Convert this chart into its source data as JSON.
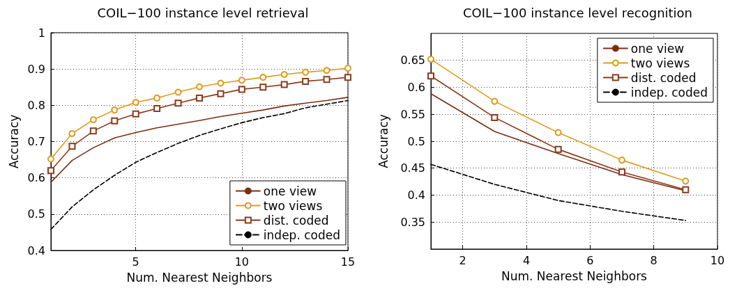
{
  "chart_data": [
    {
      "type": "line",
      "title": "COIL−100 instance level retrieval",
      "xlabel": "Num. Nearest Neighbors",
      "ylabel": "Accuracy",
      "x": [
        1,
        2,
        3,
        4,
        5,
        6,
        7,
        8,
        9,
        10,
        11,
        12,
        13,
        14,
        15
      ],
      "xlim": [
        1,
        15
      ],
      "xticks": [
        5,
        10,
        15
      ],
      "ylim": [
        0.4,
        1
      ],
      "yticks": [
        0.4,
        0.5,
        0.6,
        0.7,
        0.8,
        0.9,
        1
      ],
      "grid": true,
      "legend": "bottom right",
      "series": [
        {
          "name": "one view",
          "color": "#7a2e10",
          "marker": "none",
          "line_style": "solid",
          "values": [
            0.588,
            0.648,
            0.683,
            0.71,
            0.725,
            0.738,
            0.748,
            0.758,
            0.769,
            0.778,
            0.787,
            0.798,
            0.806,
            0.813,
            0.822
          ]
        },
        {
          "name": "two views",
          "color": "#e09a1a",
          "marker": "circle",
          "line_style": "solid",
          "values": [
            0.652,
            0.722,
            0.76,
            0.787,
            0.808,
            0.82,
            0.836,
            0.851,
            0.861,
            0.869,
            0.877,
            0.885,
            0.891,
            0.896,
            0.902
          ]
        },
        {
          "name": "dist. coded",
          "color": "#8b3a1a",
          "marker": "square",
          "line_style": "solid",
          "values": [
            0.62,
            0.687,
            0.729,
            0.757,
            0.776,
            0.791,
            0.806,
            0.82,
            0.832,
            0.844,
            0.85,
            0.857,
            0.866,
            0.871,
            0.877
          ]
        },
        {
          "name": "indep. coded",
          "color": "#000000",
          "marker": "none",
          "line_style": "dashed",
          "values": [
            0.458,
            0.52,
            0.567,
            0.607,
            0.643,
            0.67,
            0.695,
            0.717,
            0.735,
            0.752,
            0.766,
            0.777,
            0.793,
            0.803,
            0.813
          ]
        }
      ]
    },
    {
      "type": "line",
      "title": "COIL−100 instance level recognition",
      "xlabel": "Num. Nearest Neighbors",
      "ylabel": "Accuracy",
      "x": [
        1,
        3,
        5,
        7,
        9
      ],
      "xlim": [
        1,
        10
      ],
      "xticks": [
        2,
        4,
        6,
        8,
        10
      ],
      "ylim": [
        0.3,
        0.7
      ],
      "yticks": [
        0.35,
        0.4,
        0.45,
        0.5,
        0.55,
        0.6,
        0.65
      ],
      "grid": true,
      "legend": "top right",
      "series": [
        {
          "name": "one view",
          "color": "#7a2e10",
          "marker": "none",
          "line_style": "solid",
          "values": [
            0.588,
            0.518,
            0.477,
            0.438,
            0.408
          ]
        },
        {
          "name": "two views",
          "color": "#e09a1a",
          "marker": "circle",
          "line_style": "solid",
          "values": [
            0.652,
            0.574,
            0.516,
            0.465,
            0.426
          ]
        },
        {
          "name": "dist. coded",
          "color": "#8b3a1a",
          "marker": "square",
          "line_style": "solid",
          "values": [
            0.621,
            0.544,
            0.485,
            0.443,
            0.41
          ]
        },
        {
          "name": "indep. coded",
          "color": "#000000",
          "marker": "none",
          "line_style": "dashed",
          "values": [
            0.457,
            0.42,
            0.39,
            0.37,
            0.353
          ]
        }
      ]
    }
  ]
}
